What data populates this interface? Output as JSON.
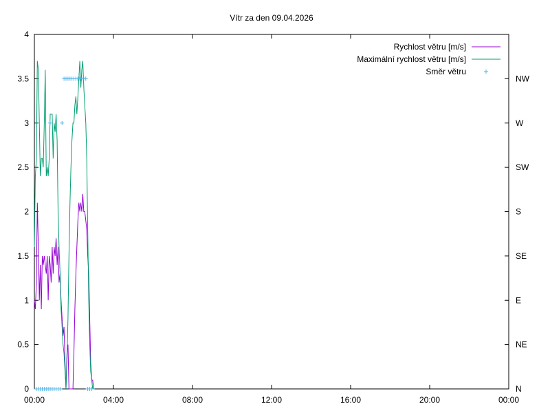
{
  "chart_data": {
    "type": "line",
    "title": "Vítr za den 09.04.2026",
    "xlabel": "",
    "ylabel": "",
    "x_ticks": [
      "00:00",
      "04:00",
      "08:00",
      "12:00",
      "16:00",
      "20:00",
      "00:00"
    ],
    "x_range_hours": [
      0,
      24
    ],
    "ylim": [
      0,
      4
    ],
    "y_ticks": [
      "0",
      "0.5",
      "1",
      "1.5",
      "2",
      "2.5",
      "3",
      "3.5",
      "4"
    ],
    "y2_ticks": [
      "N",
      "NE",
      "E",
      "SE",
      "S",
      "SW",
      "W",
      "NW"
    ],
    "y2_tick_values": [
      0,
      0.5,
      1,
      1.5,
      2,
      2.5,
      3,
      3.5
    ],
    "legend_position": "top-right",
    "grid": false,
    "series": [
      {
        "name": "Rychlost větru [m/s]",
        "color": "#9400d3",
        "style": "line",
        "x": [
          0,
          0.05,
          0.1,
          0.15,
          0.2,
          0.25,
          0.3,
          0.35,
          0.4,
          0.45,
          0.5,
          0.55,
          0.6,
          0.65,
          0.7,
          0.75,
          0.8,
          0.85,
          0.9,
          0.95,
          1.0,
          1.05,
          1.1,
          1.15,
          1.2,
          1.25,
          1.3,
          1.35,
          1.4,
          1.45,
          1.5,
          1.55,
          1.6,
          1.65,
          1.7,
          1.75,
          1.8,
          1.85,
          1.9,
          1.95,
          2.0,
          2.05,
          2.1,
          2.15,
          2.2,
          2.25,
          2.3,
          2.35,
          2.4,
          2.45,
          2.5,
          2.55,
          2.6,
          2.65,
          2.7,
          2.75,
          2.8,
          2.85,
          2.9,
          2.95,
          3.0,
          3.05
        ],
        "values": [
          1.0,
          0.9,
          1.2,
          2.1,
          1.6,
          1.0,
          1.4,
          0.9,
          1.5,
          1.4,
          1.5,
          1.4,
          1.3,
          1.5,
          1.0,
          1.5,
          1.4,
          1.2,
          1.6,
          1.3,
          1.6,
          1.5,
          1.7,
          1.4,
          1.6,
          1.2,
          1.3,
          1.0,
          0.8,
          0.6,
          0.7,
          0.3,
          0.0,
          0.4,
          0.5,
          0.0,
          0.0,
          0.0,
          0.0,
          0.0,
          0.4,
          0.9,
          1.3,
          1.6,
          1.9,
          2.1,
          2.0,
          2.1,
          2.0,
          2.2,
          2.0,
          2.0,
          1.9,
          1.8,
          1.5,
          1.3,
          0.8,
          0.3,
          0.1,
          0.1,
          0.0,
          0.0
        ]
      },
      {
        "name": "Maximální rychlost větru [m/s]",
        "color": "#009e73",
        "style": "line",
        "x": [
          0,
          0.05,
          0.1,
          0.15,
          0.2,
          0.25,
          0.3,
          0.35,
          0.4,
          0.45,
          0.5,
          0.55,
          0.6,
          0.65,
          0.7,
          0.75,
          0.8,
          0.85,
          0.9,
          0.95,
          1.0,
          1.05,
          1.1,
          1.15,
          1.2,
          1.25,
          1.3,
          1.35,
          1.4,
          1.45,
          1.5,
          1.55,
          1.6,
          1.65,
          1.7,
          1.75,
          1.8,
          1.85,
          1.9,
          1.95,
          2.0,
          2.05,
          2.1,
          2.15,
          2.2,
          2.25,
          2.3,
          2.35,
          2.4,
          2.45,
          2.5,
          2.55,
          2.6,
          2.65,
          2.7,
          2.75,
          2.8,
          2.85,
          2.9,
          2.95,
          3.0,
          3.05
        ],
        "values": [
          1.6,
          2.4,
          2.6,
          3.7,
          3.6,
          3.0,
          2.4,
          2.6,
          2.6,
          2.5,
          3.0,
          3.6,
          2.4,
          2.5,
          2.4,
          2.6,
          3.1,
          3.1,
          3.1,
          2.6,
          3.0,
          2.9,
          3.1,
          2.8,
          2.0,
          1.6,
          1.3,
          0.9,
          0.7,
          0.5,
          0.4,
          0.2,
          0.0,
          0.3,
          0.8,
          1.5,
          2.1,
          2.5,
          2.8,
          3.0,
          3.0,
          3.2,
          3.3,
          3.1,
          3.3,
          3.5,
          3.7,
          3.4,
          3.6,
          3.7,
          3.4,
          3.2,
          3.0,
          2.6,
          1.8,
          1.0,
          0.5,
          0.2,
          0.1,
          0.0,
          0.0,
          0.0
        ]
      },
      {
        "name": "Směr větru",
        "color": "#56b4e9",
        "style": "points",
        "x": [
          0.1,
          0.2,
          0.3,
          0.4,
          0.5,
          0.6,
          0.7,
          0.8,
          0.9,
          1.0,
          1.1,
          1.2,
          1.3,
          0.8,
          1.4,
          1.5,
          1.6,
          1.7,
          1.8,
          1.9,
          2.0,
          2.1,
          2.2,
          2.3,
          2.4,
          2.5,
          2.6,
          2.7,
          2.8,
          2.9
        ],
        "values": [
          0.0,
          0.0,
          0.0,
          0.0,
          0.0,
          0.0,
          0.0,
          0.0,
          0.0,
          0.0,
          0.0,
          0.0,
          0.0,
          3.0,
          3.0,
          3.5,
          3.5,
          3.5,
          3.5,
          3.5,
          3.5,
          3.5,
          3.5,
          3.5,
          3.5,
          3.5,
          3.5,
          0.0,
          0.0,
          0.0
        ]
      }
    ]
  }
}
